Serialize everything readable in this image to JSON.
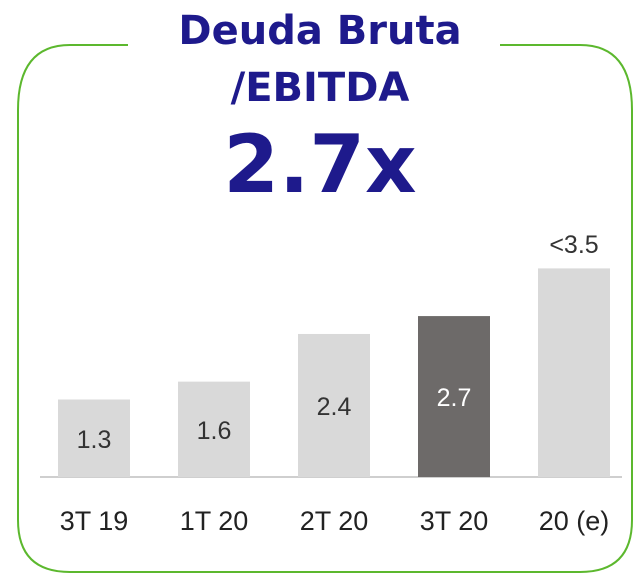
{
  "chart_data": {
    "type": "bar",
    "title": [
      "Deuda Bruta",
      "/EBITDA"
    ],
    "headline": "2.7x",
    "categories": [
      "3T 19",
      "1T 20",
      "2T 20",
      "3T 20",
      "20 (e)"
    ],
    "values": [
      1.3,
      1.6,
      2.4,
      2.7,
      3.5
    ],
    "value_labels": [
      "1.3",
      "1.6",
      "2.4",
      "2.7",
      "<3.5"
    ],
    "colors": [
      "#d9d9d9",
      "#d9d9d9",
      "#d9d9d9",
      "#6d6a69",
      "#d9d9d9"
    ],
    "label_positions": [
      "inside",
      "inside",
      "inside",
      "inside",
      "above"
    ],
    "frame_color": "#5cb82e"
  }
}
